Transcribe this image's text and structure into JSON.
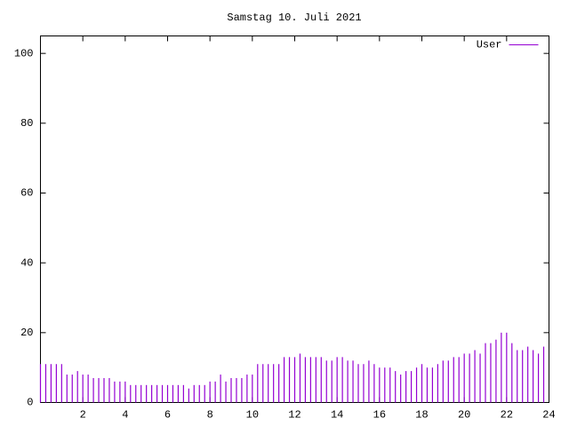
{
  "chart_data": {
    "type": "impulses",
    "title": "Samstag 10. Juli 2021",
    "x": [
      0,
      0.25,
      0.5,
      0.75,
      1,
      1.25,
      1.5,
      1.75,
      2,
      2.25,
      2.5,
      2.75,
      3,
      3.25,
      3.5,
      3.75,
      4,
      4.25,
      4.5,
      4.75,
      5,
      5.25,
      5.5,
      5.75,
      6,
      6.25,
      6.5,
      6.75,
      7,
      7.25,
      7.5,
      7.75,
      8,
      8.25,
      8.5,
      8.75,
      9,
      9.25,
      9.5,
      9.75,
      10,
      10.25,
      10.5,
      10.75,
      11,
      11.25,
      11.5,
      11.75,
      12,
      12.25,
      12.5,
      12.75,
      13,
      13.25,
      13.5,
      13.75,
      14,
      14.25,
      14.5,
      14.75,
      15,
      15.25,
      15.5,
      15.75,
      16,
      16.25,
      16.5,
      16.75,
      17,
      17.25,
      17.5,
      17.75,
      18,
      18.25,
      18.5,
      18.75,
      19,
      19.25,
      19.5,
      19.75,
      20,
      20.25,
      20.5,
      20.75,
      21,
      21.25,
      21.5,
      21.75,
      22,
      22.25,
      22.5,
      22.75,
      23,
      23.25,
      23.5,
      23.75
    ],
    "series": [
      {
        "name": "User",
        "color": "#9400d3",
        "values": [
          11,
          11,
          11,
          11,
          11,
          8,
          8,
          9,
          8,
          8,
          7,
          7,
          7,
          7,
          6,
          6,
          6,
          5,
          5,
          5,
          5,
          5,
          5,
          5,
          5,
          5,
          5,
          5,
          4,
          5,
          5,
          5,
          6,
          6,
          8,
          6,
          7,
          7,
          7,
          8,
          8,
          11,
          11,
          11,
          11,
          11,
          13,
          13,
          13,
          14,
          13,
          13,
          13,
          13,
          12,
          12,
          13,
          13,
          12,
          12,
          11,
          11,
          12,
          11,
          10,
          10,
          10,
          9,
          8,
          9,
          9,
          10,
          11,
          10,
          10,
          11,
          12,
          12,
          13,
          13,
          14,
          14,
          15,
          14,
          17,
          17,
          18,
          20,
          20,
          17,
          15,
          15,
          16,
          15,
          14,
          16
        ]
      }
    ],
    "xlim": [
      0,
      24
    ],
    "xticks": [
      2,
      4,
      6,
      8,
      10,
      12,
      14,
      16,
      18,
      20,
      22,
      24
    ],
    "ylim": [
      0,
      105
    ],
    "yticks": [
      0,
      20,
      40,
      60,
      80,
      100
    ],
    "grid": false,
    "legend": "top-right"
  }
}
